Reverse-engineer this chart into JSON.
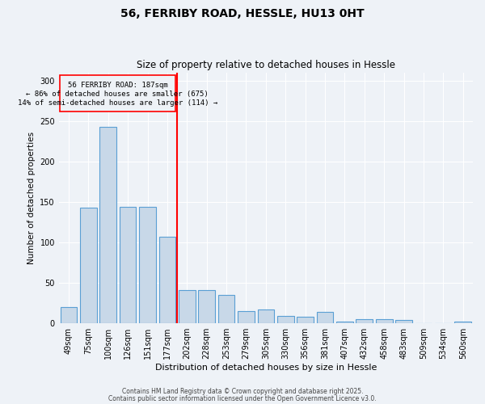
{
  "title1": "56, FERRIBY ROAD, HESSLE, HU13 0HT",
  "title2": "Size of property relative to detached houses in Hessle",
  "xlabel": "Distribution of detached houses by size in Hessle",
  "ylabel": "Number of detached properties",
  "categories": [
    "49sqm",
    "75sqm",
    "100sqm",
    "126sqm",
    "151sqm",
    "177sqm",
    "202sqm",
    "228sqm",
    "253sqm",
    "279sqm",
    "305sqm",
    "330sqm",
    "356sqm",
    "381sqm",
    "407sqm",
    "432sqm",
    "458sqm",
    "483sqm",
    "509sqm",
    "534sqm",
    "560sqm"
  ],
  "values": [
    20,
    143,
    243,
    144,
    144,
    107,
    41,
    41,
    35,
    15,
    17,
    9,
    8,
    14,
    2,
    5,
    5,
    4,
    0,
    0,
    2
  ],
  "bar_color": "#c8d8e8",
  "bar_edge_color": "#5a9fd4",
  "vline_label": "56 FERRIBY ROAD: 187sqm",
  "annotation_smaller": "← 86% of detached houses are smaller (675)",
  "annotation_larger": "14% of semi-detached houses are larger (114) →",
  "box_color": "red",
  "vline_color": "red",
  "ylim": [
    0,
    310
  ],
  "footer1": "Contains HM Land Registry data © Crown copyright and database right 2025.",
  "footer2": "Contains public sector information licensed under the Open Government Licence v3.0.",
  "bg_color": "#eef2f7",
  "grid_color": "#ffffff"
}
